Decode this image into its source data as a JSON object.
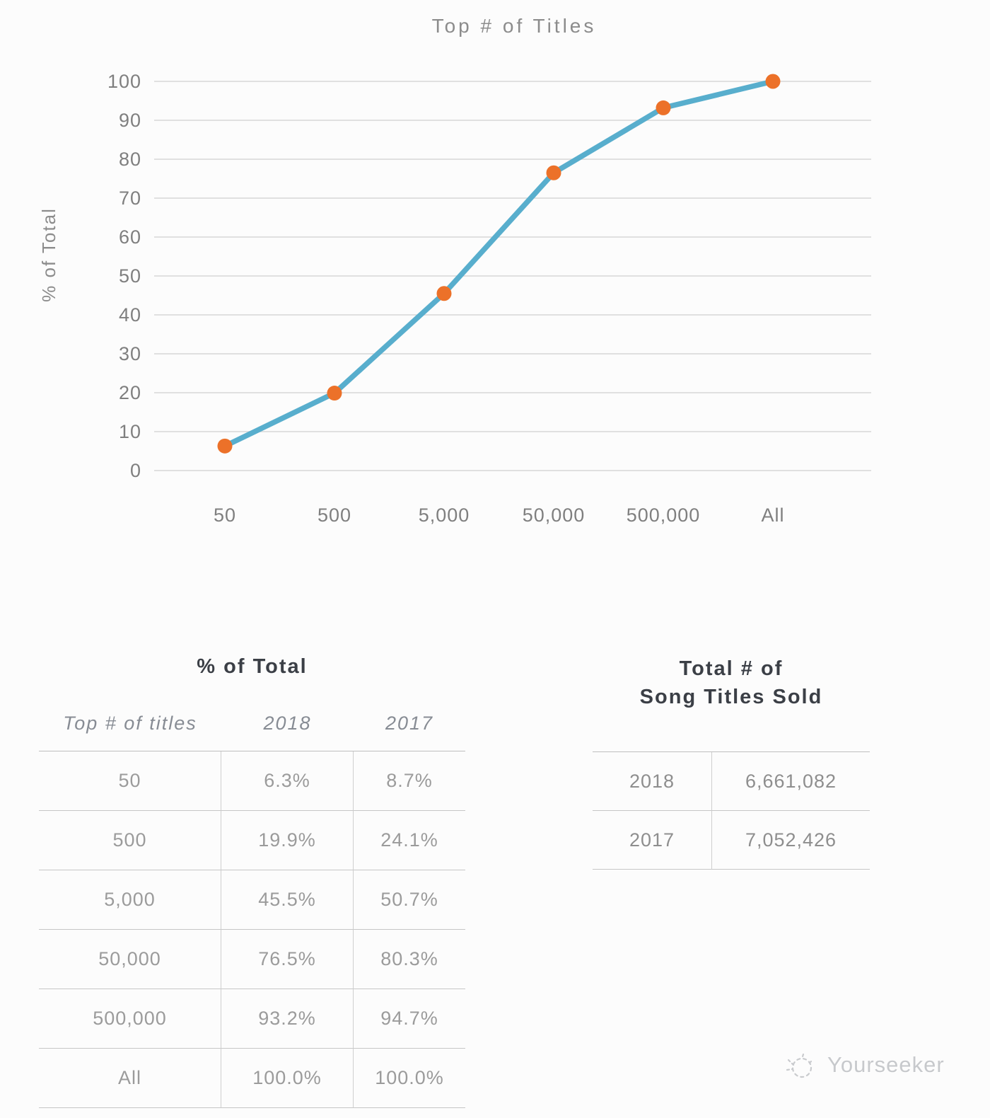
{
  "chart": {
    "title": "Top # of Titles",
    "ylabel": "% of Total"
  },
  "chart_data": {
    "type": "line",
    "title": "Top # of Titles",
    "xlabel": "",
    "ylabel": "% of Total",
    "categories": [
      "50",
      "500",
      "5,000",
      "50,000",
      "500,000",
      "All"
    ],
    "series": [
      {
        "name": "2018",
        "values": [
          6.3,
          19.9,
          45.5,
          76.5,
          93.2,
          100.0
        ]
      }
    ],
    "ylim": [
      0,
      100
    ],
    "yticks": [
      0,
      10,
      20,
      30,
      40,
      50,
      60,
      70,
      80,
      90,
      100
    ],
    "grid": true,
    "legend": "none",
    "line_color": "#58aecd",
    "marker_color": "#ec7129"
  },
  "left_table": {
    "title": "% of Total",
    "columns": [
      "Top # of titles",
      "2018",
      "2017"
    ],
    "rows": [
      [
        "50",
        "6.3%",
        "8.7%"
      ],
      [
        "500",
        "19.9%",
        "24.1%"
      ],
      [
        "5,000",
        "45.5%",
        "50.7%"
      ],
      [
        "50,000",
        "76.5%",
        "80.3%"
      ],
      [
        "500,000",
        "93.2%",
        "94.7%"
      ],
      [
        "All",
        "100.0%",
        "100.0%"
      ]
    ]
  },
  "right_table": {
    "title_line1": "Total # of",
    "title_line2": "Song Titles Sold",
    "rows": [
      [
        "2018",
        "6,661,082"
      ],
      [
        "2017",
        "7,052,426"
      ]
    ]
  },
  "watermark": {
    "label": "Yourseeker"
  }
}
